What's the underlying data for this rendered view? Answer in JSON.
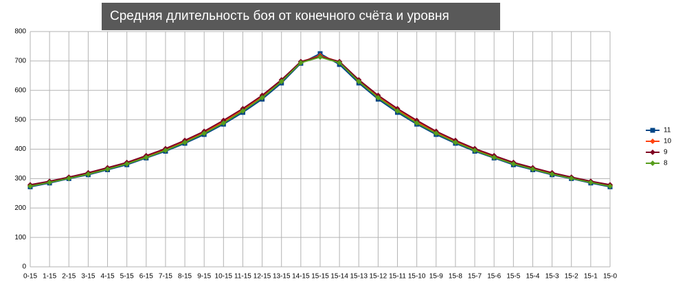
{
  "chart_data": {
    "type": "line",
    "title": "Средняя длительность боя от конечного счёта и уровня",
    "categories": [
      "0-15",
      "1-15",
      "2-15",
      "3-15",
      "4-15",
      "5-15",
      "6-15",
      "7-15",
      "8-15",
      "9-15",
      "10-15",
      "11-15",
      "12-15",
      "13-15",
      "14-15",
      "15-15",
      "15-14",
      "15-13",
      "15-12",
      "15-11",
      "15-10",
      "15-9",
      "15-8",
      "15-7",
      "15-6",
      "15-5",
      "15-4",
      "15-3",
      "15-2",
      "15-1",
      "15-0"
    ],
    "series": [
      {
        "name": "11",
        "color": "#004586",
        "marker": "square",
        "values": [
          272,
          285,
          300,
          313,
          330,
          347,
          370,
          393,
          420,
          450,
          485,
          525,
          570,
          625,
          692,
          725,
          688,
          625,
          570,
          525,
          485,
          450,
          420,
          393,
          370,
          347,
          330,
          313,
          300,
          285,
          272
        ]
      },
      {
        "name": "10",
        "color": "#ff420e",
        "marker": "diamond",
        "values": [
          276,
          289,
          303,
          317,
          334,
          352,
          374,
          398,
          426,
          457,
          493,
          533,
          578,
          632,
          697,
          718,
          697,
          632,
          578,
          533,
          493,
          457,
          426,
          398,
          374,
          352,
          334,
          317,
          303,
          289,
          276
        ]
      },
      {
        "name": "9",
        "color": "#7e0021",
        "marker": "diamond",
        "values": [
          279,
          291,
          305,
          320,
          337,
          355,
          378,
          402,
          430,
          461,
          498,
          538,
          583,
          636,
          698,
          715,
          698,
          636,
          583,
          538,
          498,
          461,
          430,
          402,
          378,
          355,
          337,
          320,
          305,
          291,
          279
        ]
      },
      {
        "name": "8",
        "color": "#579d1c",
        "marker": "diamond",
        "values": [
          274,
          287,
          301,
          315,
          332,
          350,
          372,
          396,
          423,
          454,
          489,
          530,
          575,
          630,
          694,
          713,
          694,
          630,
          575,
          530,
          489,
          454,
          423,
          396,
          372,
          350,
          332,
          315,
          301,
          287,
          274
        ]
      }
    ],
    "ylim": [
      0,
      800
    ],
    "yticks": [
      0,
      100,
      200,
      300,
      400,
      500,
      600,
      700,
      800
    ],
    "grid": true,
    "legend": "right"
  }
}
